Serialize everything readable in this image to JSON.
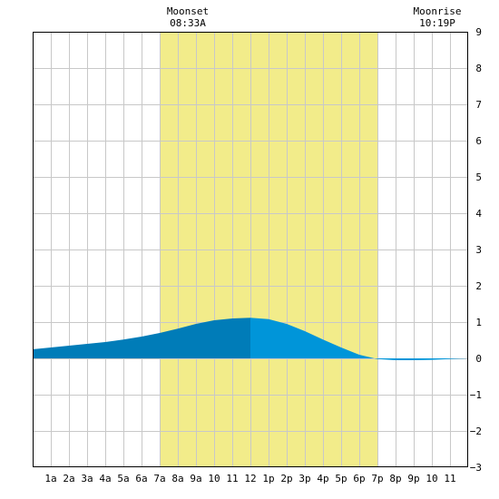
{
  "chart_data": {
    "type": "area",
    "title": "",
    "xlabel": "",
    "ylabel": "",
    "xlim": [
      0,
      24
    ],
    "ylim": [
      -3,
      9
    ],
    "grid": true,
    "x_tick_labels": [
      {
        "hour": 1,
        "label": "1a"
      },
      {
        "hour": 2,
        "label": "2a"
      },
      {
        "hour": 3,
        "label": "3a"
      },
      {
        "hour": 4,
        "label": "4a"
      },
      {
        "hour": 5,
        "label": "5a"
      },
      {
        "hour": 6,
        "label": "6a"
      },
      {
        "hour": 7,
        "label": "7a"
      },
      {
        "hour": 8,
        "label": "8a"
      },
      {
        "hour": 9,
        "label": "9a"
      },
      {
        "hour": 10,
        "label": "10"
      },
      {
        "hour": 11,
        "label": "11"
      },
      {
        "hour": 12,
        "label": "12"
      },
      {
        "hour": 13,
        "label": "1p"
      },
      {
        "hour": 14,
        "label": "2p"
      },
      {
        "hour": 15,
        "label": "3p"
      },
      {
        "hour": 16,
        "label": "4p"
      },
      {
        "hour": 17,
        "label": "5p"
      },
      {
        "hour": 18,
        "label": "6p"
      },
      {
        "hour": 19,
        "label": "7p"
      },
      {
        "hour": 20,
        "label": "8p"
      },
      {
        "hour": 21,
        "label": "9p"
      },
      {
        "hour": 22,
        "label": "10"
      },
      {
        "hour": 23,
        "label": "11"
      }
    ],
    "y_ticks": [
      -3,
      -2,
      -1,
      0,
      1,
      2,
      3,
      4,
      5,
      6,
      7,
      8,
      9
    ],
    "y_tick_labels": [
      "−3",
      "−2",
      "−1",
      "0",
      "1",
      "2",
      "3",
      "4",
      "5",
      "6",
      "7",
      "8",
      "9"
    ],
    "daylight": {
      "start_hour": 7.0,
      "end_hour": 19.0,
      "color": "#f2ec8a"
    },
    "series": {
      "x": [
        0,
        1,
        2,
        3,
        4,
        5,
        6,
        7,
        8,
        9,
        10,
        11,
        12,
        13,
        14,
        15,
        16,
        17,
        18,
        19,
        20,
        21,
        22,
        23,
        24
      ],
      "values": [
        0.25,
        0.3,
        0.35,
        0.4,
        0.45,
        0.52,
        0.6,
        0.7,
        0.82,
        0.95,
        1.05,
        1.1,
        1.12,
        1.08,
        0.95,
        0.75,
        0.52,
        0.3,
        0.1,
        -0.02,
        -0.05,
        -0.05,
        -0.04,
        -0.02,
        0.0
      ]
    },
    "split_hour": 12,
    "colors": {
      "before_split": "#007cb8",
      "after_split": "#0095d9",
      "grid": "#c8c8c8",
      "axis": "#000000"
    },
    "annotations": [
      {
        "hour": 8.55,
        "title": "Moonset",
        "time": "08:33A"
      },
      {
        "hour": 22.3,
        "title": "Moonrise",
        "time": "10:19P"
      }
    ]
  }
}
